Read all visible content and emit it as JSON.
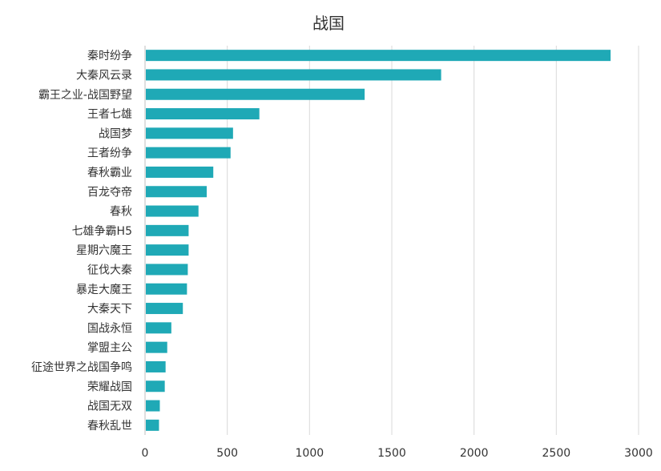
{
  "chart_data": {
    "type": "bar",
    "orientation": "horizontal",
    "title": "战国",
    "xlabel": "",
    "ylabel": "",
    "xlim": [
      0,
      3000
    ],
    "x_ticks": [
      0,
      500,
      1000,
      1500,
      2000,
      2500,
      3000
    ],
    "grid": true,
    "legend": "none",
    "bar_color": "#1fa9b6",
    "categories": [
      "秦时纷争",
      "大秦风云录",
      "霸王之业-战国野望",
      "王者七雄",
      "战国梦",
      "王者纷争",
      "春秋霸业",
      "百龙夺帝",
      "春秋",
      "七雄争霸H5",
      "星期六魔王",
      "征伐大秦",
      "暴走大魔王",
      "大秦天下",
      "国战永恒",
      "掌盟主公",
      "征途世界之战国争鸣",
      "荣耀战国",
      "战国无双",
      "春秋乱世"
    ],
    "values": [
      2830,
      1800,
      1335,
      695,
      535,
      520,
      415,
      375,
      325,
      265,
      265,
      260,
      255,
      230,
      160,
      135,
      125,
      120,
      90,
      85
    ]
  }
}
